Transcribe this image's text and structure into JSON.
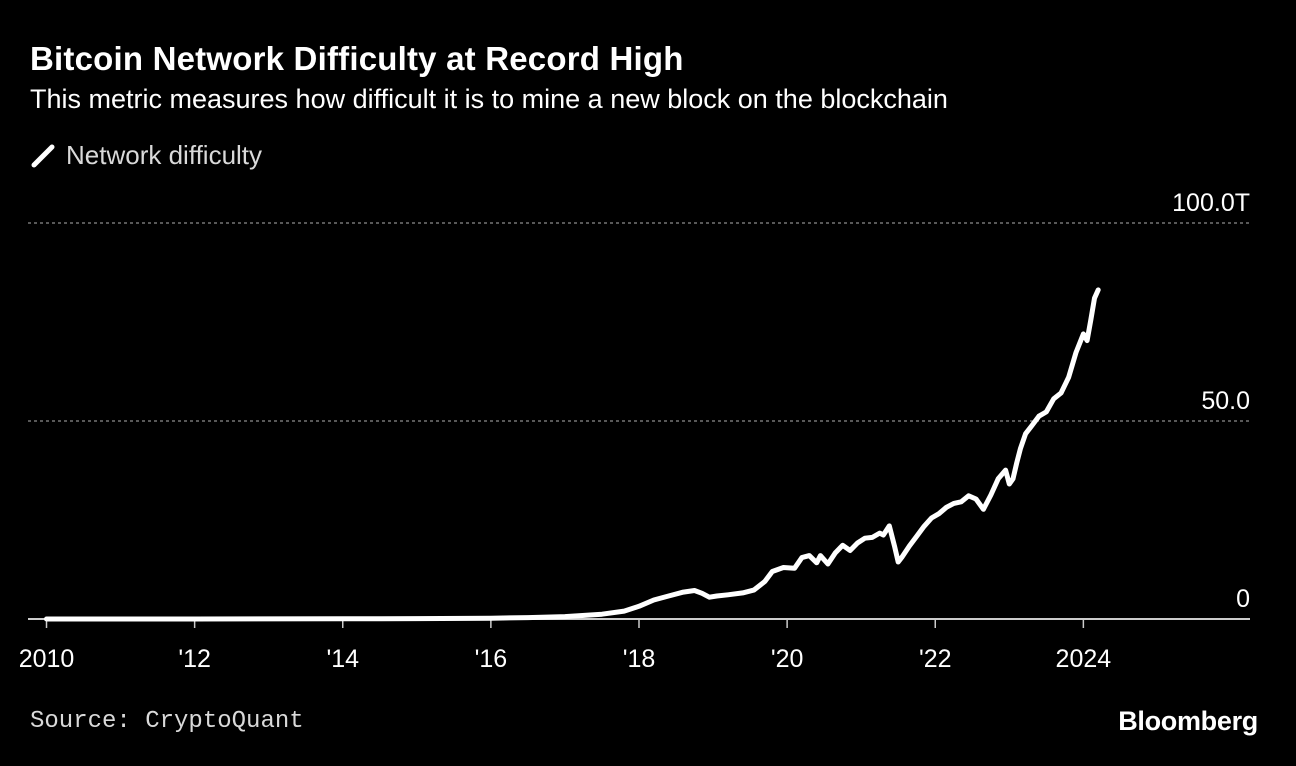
{
  "header": {
    "title": "Bitcoin Network Difficulty at Record High",
    "subtitle": "This metric measures how difficult it is to mine a new block on the blockchain"
  },
  "legend": {
    "icon": "slash-line-icon",
    "label": "Network difficulty"
  },
  "footer": {
    "source": "Source: CryptoQuant",
    "brand": "Bloomberg"
  },
  "colors": {
    "background": "#000000",
    "line": "#ffffff",
    "grid": "#8c8c8c",
    "axis": "#cccccc"
  },
  "chart_data": {
    "type": "line",
    "title": "Bitcoin Network Difficulty at Record High",
    "subtitle": "This metric measures how difficult it is to mine a new block on the blockchain",
    "xlabel": "",
    "ylabel": "",
    "xlim": [
      2009.75,
      2026.25
    ],
    "ylim": [
      0,
      100
    ],
    "yticks": [
      {
        "value": 0,
        "label": "0"
      },
      {
        "value": 50,
        "label": "50.0"
      },
      {
        "value": 100,
        "label": "100.0T"
      }
    ],
    "xticks": [
      {
        "value": 2010,
        "label": "2010"
      },
      {
        "value": 2012,
        "label": "'12"
      },
      {
        "value": 2014,
        "label": "'14"
      },
      {
        "value": 2016,
        "label": "'16"
      },
      {
        "value": 2018,
        "label": "'18"
      },
      {
        "value": 2020,
        "label": "'20"
      },
      {
        "value": 2022,
        "label": "'22"
      },
      {
        "value": 2024,
        "label": "2024"
      }
    ],
    "grid": true,
    "legend_position": "top-left",
    "series": [
      {
        "name": "Network difficulty",
        "x": [
          2010.0,
          2012.0,
          2014.0,
          2015.0,
          2016.0,
          2016.5,
          2017.0,
          2017.5,
          2017.8,
          2018.0,
          2018.2,
          2018.4,
          2018.6,
          2018.75,
          2018.85,
          2018.95,
          2019.05,
          2019.2,
          2019.4,
          2019.55,
          2019.7,
          2019.8,
          2019.95,
          2020.1,
          2020.2,
          2020.3,
          2020.4,
          2020.45,
          2020.55,
          2020.65,
          2020.75,
          2020.85,
          2020.95,
          2021.05,
          2021.15,
          2021.25,
          2021.3,
          2021.38,
          2021.45,
          2021.5,
          2021.55,
          2021.65,
          2021.75,
          2021.85,
          2021.95,
          2022.05,
          2022.15,
          2022.25,
          2022.35,
          2022.45,
          2022.55,
          2022.65,
          2022.75,
          2022.85,
          2022.95,
          2023.0,
          2023.05,
          2023.1,
          2023.15,
          2023.22,
          2023.3,
          2023.4,
          2023.5,
          2023.6,
          2023.7,
          2023.8,
          2023.9,
          2024.0,
          2024.05,
          2024.1,
          2024.15,
          2024.2
        ],
        "values": [
          0,
          0,
          0.05,
          0.1,
          0.2,
          0.35,
          0.6,
          1.2,
          2.0,
          3.2,
          4.8,
          5.8,
          6.8,
          7.2,
          6.5,
          5.5,
          5.8,
          6.1,
          6.6,
          7.3,
          9.5,
          12.0,
          13.0,
          12.8,
          15.5,
          16.0,
          14.2,
          16.0,
          13.9,
          16.7,
          18.6,
          17.3,
          19.2,
          20.4,
          20.6,
          21.7,
          21.2,
          23.5,
          18.4,
          14.4,
          15.6,
          18.4,
          20.9,
          23.4,
          25.5,
          26.6,
          28.2,
          29.2,
          29.6,
          31.1,
          30.3,
          27.7,
          31.3,
          35.4,
          37.6,
          34.1,
          35.4,
          39.4,
          43.0,
          46.8,
          48.7,
          51.2,
          52.3,
          55.6,
          57.1,
          61.0,
          67.3,
          72.0,
          70.3,
          75.5,
          81.0,
          83.1
        ]
      }
    ]
  }
}
